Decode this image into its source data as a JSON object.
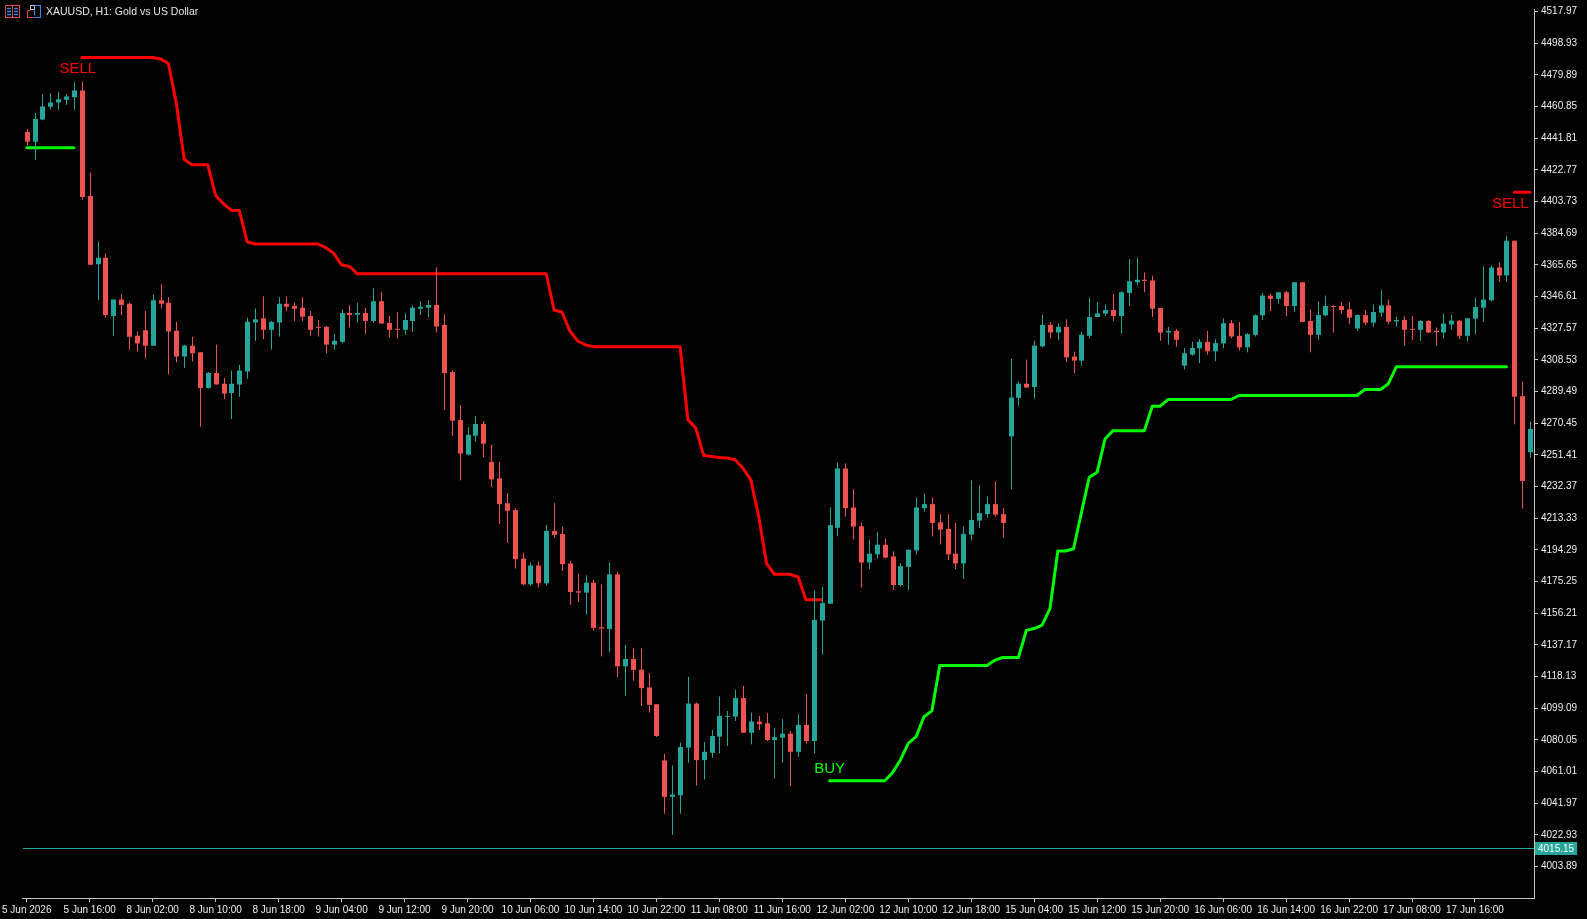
{
  "chart_data": {
    "type": "candlestick",
    "title": "XAUUSD, H1: Gold vs US Dollar",
    "categories": [
      "5 Jun 2026",
      null,
      null,
      null,
      null,
      null,
      null,
      null,
      "5 Jun 16:00",
      null,
      null,
      null,
      null,
      null,
      null,
      null,
      "8 Jun 02:00",
      null,
      null,
      null,
      null,
      null,
      null,
      null,
      "8 Jun 10:00",
      null,
      null,
      null,
      null,
      null,
      null,
      null,
      "8 Jun 18:00",
      null,
      null,
      null,
      null,
      null,
      null,
      null,
      "9 Jun 04:00",
      null,
      null,
      null,
      null,
      null,
      null,
      null,
      "9 Jun 12:00",
      null,
      null,
      null,
      null,
      null,
      null,
      null,
      "9 Jun 20:00",
      null,
      null,
      null,
      null,
      null,
      null,
      null,
      "10 Jun 06:00",
      null,
      null,
      null,
      null,
      null,
      null,
      null,
      "10 Jun 14:00",
      null,
      null,
      null,
      null,
      null,
      null,
      null,
      "10 Jun 22:00",
      null,
      null,
      null,
      null,
      null,
      null,
      null,
      "11 Jun 08:00",
      null,
      null,
      null,
      null,
      null,
      null,
      null,
      "11 Jun 16:00",
      null,
      null,
      null,
      null,
      null,
      null,
      null,
      "12 Jun 02:00",
      null,
      null,
      null,
      null,
      null,
      null,
      null,
      "12 Jun 10:00",
      null,
      null,
      null,
      null,
      null,
      null,
      null,
      "12 Jun 18:00",
      null,
      null,
      null,
      null,
      null,
      null,
      null,
      "15 Jun 04:00",
      null,
      null,
      null,
      null,
      null,
      null,
      null,
      "15 Jun 12:00",
      null,
      null,
      null,
      null,
      null,
      null,
      null,
      "15 Jun 20:00",
      null,
      null,
      null,
      null,
      null,
      null,
      null,
      "16 Jun 06:00",
      null,
      null,
      null,
      null,
      null,
      null,
      null,
      "16 Jun 14:00",
      null,
      null,
      null,
      null,
      null,
      null,
      null,
      "16 Jun 22:00",
      null,
      null,
      null,
      null,
      null,
      null,
      null,
      "17 Jun 08:00",
      null,
      null,
      null,
      null,
      null,
      null,
      null,
      "17 Jun 16:00",
      null,
      null,
      null,
      null,
      null,
      null,
      null
    ],
    "ohlc": [
      [
        4445.6,
        4447.5,
        4437.5,
        4439.7
      ],
      [
        4439.7,
        4457.0,
        4428.6,
        4453.4
      ],
      [
        4453.0,
        4468.3,
        4452.6,
        4460.9
      ],
      [
        4460.7,
        4468.9,
        4459.0,
        4463.3
      ],
      [
        4463.3,
        4469.5,
        4459.0,
        4465.3
      ],
      [
        4464.9,
        4468.3,
        4461.9,
        4466.9
      ],
      [
        4466.5,
        4475.4,
        4459.0,
        4470.5
      ],
      [
        4470.5,
        4475.8,
        4404.8,
        4406.4
      ],
      [
        4407.0,
        4421.2,
        4365.7,
        4365.7
      ],
      [
        4366.1,
        4379.6,
        4344.4,
        4370.0
      ],
      [
        4370.0,
        4372.6,
        4333.9,
        4335.5
      ],
      [
        4334.9,
        4344.8,
        4323.0,
        4344.8
      ],
      [
        4344.8,
        4348.0,
        4335.5,
        4341.5
      ],
      [
        4342.3,
        4342.9,
        4314.7,
        4322.4
      ],
      [
        4323.0,
        4325.6,
        4313.5,
        4318.4
      ],
      [
        4326.4,
        4337.9,
        4309.5,
        4317.1
      ],
      [
        4317.1,
        4347.8,
        4317.1,
        4344.4
      ],
      [
        4344.4,
        4354.0,
        4339.5,
        4342.3
      ],
      [
        4342.9,
        4346.2,
        4299.8,
        4325.6
      ],
      [
        4326.0,
        4331.4,
        4307.1,
        4310.5
      ],
      [
        4310.5,
        4317.7,
        4303.6,
        4317.1
      ],
      [
        4317.1,
        4322.4,
        4307.5,
        4312.5
      ],
      [
        4313.1,
        4313.1,
        4268.4,
        4291.7
      ],
      [
        4291.7,
        4301.2,
        4291.3,
        4300.6
      ],
      [
        4300.6,
        4317.7,
        4293.8,
        4293.8
      ],
      [
        4294.2,
        4297.6,
        4284.9,
        4288.3
      ],
      [
        4288.7,
        4302.2,
        4273.0,
        4294.2
      ],
      [
        4293.8,
        4305.6,
        4286.3,
        4302.2
      ],
      [
        4301.6,
        4333.9,
        4297.2,
        4331.4
      ],
      [
        4331.0,
        4339.5,
        4320.0,
        4332.9
      ],
      [
        4333.5,
        4346.8,
        4321.0,
        4326.6
      ],
      [
        4326.6,
        4331.9,
        4314.7,
        4331.4
      ],
      [
        4331.0,
        4346.2,
        4322.6,
        4342.3
      ],
      [
        4342.3,
        4346.8,
        4337.9,
        4340.5
      ],
      [
        4340.9,
        4342.9,
        4331.9,
        4339.3
      ],
      [
        4339.9,
        4346.2,
        4331.9,
        4334.5
      ],
      [
        4334.9,
        4337.9,
        4323.0,
        4326.6
      ],
      [
        4328.4,
        4332.5,
        4322.6,
        4328.0
      ],
      [
        4328.4,
        4329.0,
        4312.5,
        4317.7
      ],
      [
        4317.7,
        4324.2,
        4314.7,
        4320.0
      ],
      [
        4319.4,
        4338.9,
        4318.4,
        4336.7
      ],
      [
        4336.7,
        4341.5,
        4328.0,
        4335.5
      ],
      [
        4335.7,
        4342.7,
        4330.9,
        4336.7
      ],
      [
        4336.7,
        4339.7,
        4324.2,
        4331.9
      ],
      [
        4331.9,
        4351.8,
        4330.9,
        4343.8
      ],
      [
        4343.8,
        4349.2,
        4330.4,
        4330.4
      ],
      [
        4330.8,
        4334.9,
        4322.0,
        4326.6
      ],
      [
        4327.2,
        4337.3,
        4321.4,
        4326.8
      ],
      [
        4326.6,
        4336.5,
        4323.6,
        4332.5
      ],
      [
        4331.9,
        4341.3,
        4325.4,
        4339.9
      ],
      [
        4339.3,
        4343.8,
        4335.5,
        4340.5
      ],
      [
        4339.9,
        4344.4,
        4334.3,
        4341.5
      ],
      [
        4341.5,
        4364.1,
        4325.0,
        4328.6
      ],
      [
        4329.6,
        4335.9,
        4278.4,
        4300.6
      ],
      [
        4301.2,
        4302.2,
        4262.9,
        4272.0
      ],
      [
        4272.4,
        4281.3,
        4236.1,
        4252.2
      ],
      [
        4251.6,
        4268.0,
        4251.0,
        4263.5
      ],
      [
        4262.9,
        4274.8,
        4259.5,
        4270.0
      ],
      [
        4270.0,
        4271.8,
        4250.0,
        4258.1
      ],
      [
        4247.2,
        4257.5,
        4232.1,
        4236.7
      ],
      [
        4237.3,
        4247.2,
        4209.9,
        4221.8
      ],
      [
        4222.4,
        4228.4,
        4198.6,
        4217.8
      ],
      [
        4218.2,
        4219.4,
        4183.1,
        4188.7
      ],
      [
        4189.1,
        4192.6,
        4173.0,
        4173.6
      ],
      [
        4173.6,
        4186.7,
        4172.6,
        4184.9
      ],
      [
        4184.9,
        4187.3,
        4171.8,
        4174.2
      ],
      [
        4174.2,
        4209.3,
        4173.0,
        4205.7
      ],
      [
        4205.7,
        4222.4,
        4201.6,
        4203.3
      ],
      [
        4203.8,
        4208.2,
        4181.6,
        4185.7
      ],
      [
        4186.1,
        4187.7,
        4161.3,
        4169.0
      ],
      [
        4169.4,
        4180.0,
        4162.9,
        4168.6
      ],
      [
        4168.6,
        4179.0,
        4155.5,
        4174.6
      ],
      [
        4174.6,
        4176.4,
        4145.8,
        4147.4
      ],
      [
        4147.8,
        4173.6,
        4130.3,
        4147.0
      ],
      [
        4146.8,
        4186.7,
        4132.7,
        4179.6
      ],
      [
        4179.6,
        4181.0,
        4117.6,
        4124.3
      ],
      [
        4124.3,
        4137.2,
        4106.6,
        4128.7
      ],
      [
        4128.7,
        4135.1,
        4115.6,
        4122.1
      ],
      [
        4122.3,
        4135.1,
        4100.5,
        4111.2
      ],
      [
        4111.6,
        4120.2,
        4096.5,
        4101.1
      ],
      [
        4101.5,
        4101.5,
        4081.8,
        4082.4
      ],
      [
        4067.7,
        4071.7,
        4035.7,
        4045.8
      ],
      [
        4045.8,
        4064.7,
        4023.0,
        4047.2
      ],
      [
        4046.8,
        4078.4,
        4035.7,
        4075.8
      ],
      [
        4075.4,
        4118.0,
        4066.3,
        4101.9
      ],
      [
        4101.9,
        4102.5,
        4052.6,
        4067.9
      ],
      [
        4067.9,
        4078.8,
        4056.2,
        4072.9
      ],
      [
        4072.3,
        4086.0,
        4069.3,
        4082.4
      ],
      [
        4082.0,
        4106.2,
        4071.9,
        4094.5
      ],
      [
        4093.9,
        4097.5,
        4076.4,
        4094.5
      ],
      [
        4094.1,
        4110.2,
        4091.5,
        4105.2
      ],
      [
        4105.2,
        4112.6,
        4084.4,
        4084.4
      ],
      [
        4084.4,
        4096.5,
        4077.4,
        4091.1
      ],
      [
        4091.1,
        4094.5,
        4086.0,
        4089.5
      ],
      [
        4090.1,
        4096.1,
        4079.4,
        4080.0
      ],
      [
        4080.0,
        4087.4,
        4056.8,
        4081.8
      ],
      [
        4081.4,
        4092.5,
        4066.3,
        4083.8
      ],
      [
        4083.8,
        4085.4,
        4052.2,
        4072.9
      ],
      [
        4072.9,
        4095.5,
        4069.9,
        4089.1
      ],
      [
        4089.1,
        4107.6,
        4077.8,
        4079.4
      ],
      [
        4079.4,
        4170.0,
        4071.9,
        4152.2
      ],
      [
        4151.8,
        4172.0,
        4131.3,
        4162.3
      ],
      [
        4161.9,
        4219.9,
        4161.9,
        4209.2
      ],
      [
        4207.6,
        4246.8,
        4202.5,
        4243.3
      ],
      [
        4243.2,
        4246.2,
        4214.3,
        4219.4
      ],
      [
        4219.8,
        4230.7,
        4200.6,
        4208.3
      ],
      [
        4208.5,
        4210.9,
        4171.6,
        4186.7
      ],
      [
        4186.7,
        4200.4,
        4182.7,
        4192.0
      ],
      [
        4191.6,
        4204.9,
        4189.1,
        4197.4
      ],
      [
        4197.4,
        4201.0,
        4189.1,
        4189.7
      ],
      [
        4190.4,
        4193.4,
        4170.2,
        4173.2
      ],
      [
        4173.2,
        4186.1,
        4172.2,
        4184.5
      ],
      [
        4184.1,
        4194.4,
        4170.2,
        4194.4
      ],
      [
        4194.0,
        4225.8,
        4191.6,
        4219.8
      ],
      [
        4219.4,
        4228.2,
        4217.2,
        4221.8
      ],
      [
        4221.8,
        4225.8,
        4202.4,
        4210.5
      ],
      [
        4210.9,
        4215.8,
        4197.6,
        4206.5
      ],
      [
        4206.9,
        4215.8,
        4188.1,
        4191.6
      ],
      [
        4192.0,
        4210.5,
        4182.7,
        4186.1
      ],
      [
        4186.1,
        4208.5,
        4176.7,
        4203.9
      ],
      [
        4203.5,
        4236.1,
        4200.0,
        4212.3
      ],
      [
        4211.9,
        4233.1,
        4207.5,
        4216.4
      ],
      [
        4215.8,
        4226.4,
        4213.5,
        4221.8
      ],
      [
        4221.8,
        4235.5,
        4214.3,
        4215.5
      ],
      [
        4215.8,
        4219.4,
        4201.6,
        4210.5
      ],
      [
        4262.5,
        4309.1,
        4230.7,
        4285.9
      ],
      [
        4285.7,
        4295.6,
        4280.9,
        4294.2
      ],
      [
        4294.2,
        4308.7,
        4291.7,
        4291.9
      ],
      [
        4292.2,
        4320.0,
        4285.3,
        4317.1
      ],
      [
        4316.7,
        4335.5,
        4316.1,
        4329.6
      ],
      [
        4329.6,
        4331.3,
        4321.4,
        4325.0
      ],
      [
        4325.0,
        4330.6,
        4320.6,
        4328.4
      ],
      [
        4328.4,
        4332.9,
        4307.1,
        4310.1
      ],
      [
        4310.5,
        4313.5,
        4300.6,
        4308.1
      ],
      [
        4308.1,
        4325.4,
        4305.1,
        4323.6
      ],
      [
        4323.0,
        4345.8,
        4321.4,
        4334.3
      ],
      [
        4334.3,
        4343.3,
        4334.3,
        4336.5
      ],
      [
        4336.3,
        4341.9,
        4334.9,
        4338.5
      ],
      [
        4338.5,
        4348.2,
        4331.9,
        4334.9
      ],
      [
        4334.9,
        4349.8,
        4324.4,
        4349.2
      ],
      [
        4348.8,
        4369.1,
        4340.9,
        4355.8
      ],
      [
        4355.2,
        4370.0,
        4353.4,
        4356.7
      ],
      [
        4356.7,
        4361.1,
        4349.2,
        4356.0
      ],
      [
        4356.3,
        4359.1,
        4334.3,
        4339.3
      ],
      [
        4339.7,
        4339.7,
        4320.0,
        4325.0
      ],
      [
        4325.0,
        4328.4,
        4317.7,
        4326.0
      ],
      [
        4326.0,
        4327.0,
        4316.5,
        4320.6
      ],
      [
        4305.1,
        4315.7,
        4302.8,
        4312.5
      ],
      [
        4311.7,
        4319.4,
        4311.1,
        4315.7
      ],
      [
        4315.5,
        4321.0,
        4306.5,
        4319.4
      ],
      [
        4319.4,
        4326.0,
        4311.7,
        4313.7
      ],
      [
        4313.7,
        4321.0,
        4307.7,
        4318.6
      ],
      [
        4318.4,
        4333.5,
        4315.5,
        4330.6
      ],
      [
        4330.6,
        4332.5,
        4321.4,
        4322.6
      ],
      [
        4323.0,
        4331.3,
        4314.1,
        4316.1
      ],
      [
        4316.1,
        4324.6,
        4313.1,
        4324.0
      ],
      [
        4323.6,
        4335.9,
        4322.6,
        4335.3
      ],
      [
        4335.3,
        4348.8,
        4332.5,
        4347.2
      ],
      [
        4347.2,
        4348.4,
        4337.9,
        4345.2
      ],
      [
        4345.2,
        4349.2,
        4342.3,
        4349.2
      ],
      [
        4349.2,
        4349.8,
        4334.9,
        4340.9
      ],
      [
        4340.9,
        4355.2,
        4337.3,
        4355.2
      ],
      [
        4355.2,
        4355.2,
        4331.3,
        4331.3
      ],
      [
        4331.9,
        4338.9,
        4313.1,
        4323.6
      ],
      [
        4323.6,
        4343.8,
        4320.6,
        4335.5
      ],
      [
        4335.3,
        4347.2,
        4334.9,
        4340.9
      ],
      [
        4340.9,
        4341.5,
        4325.0,
        4340.3
      ],
      [
        4340.9,
        4343.3,
        4336.3,
        4338.5
      ],
      [
        4338.9,
        4343.3,
        4330.0,
        4333.9
      ],
      [
        4327.4,
        4335.9,
        4326.0,
        4335.5
      ],
      [
        4335.5,
        4338.5,
        4329.4,
        4330.9
      ],
      [
        4330.9,
        4341.9,
        4328.4,
        4337.3
      ],
      [
        4336.9,
        4350.4,
        4334.3,
        4341.3
      ],
      [
        4341.3,
        4344.8,
        4330.0,
        4331.5
      ],
      [
        4331.7,
        4334.5,
        4328.6,
        4332.5
      ],
      [
        4332.5,
        4334.5,
        4317.1,
        4326.6
      ],
      [
        4327.2,
        4334.9,
        4320.6,
        4326.8
      ],
      [
        4326.6,
        4332.5,
        4320.0,
        4331.9
      ],
      [
        4331.9,
        4332.5,
        4324.6,
        4325.0
      ],
      [
        4326.0,
        4328.0,
        4317.1,
        4325.2
      ],
      [
        4325.0,
        4336.3,
        4321.4,
        4330.4
      ],
      [
        4329.8,
        4335.5,
        4326.6,
        4332.1
      ],
      [
        4332.1,
        4332.5,
        4321.0,
        4323.0
      ],
      [
        4323.0,
        4333.5,
        4319.6,
        4333.5
      ],
      [
        4333.3,
        4345.8,
        4324.0,
        4340.3
      ],
      [
        4339.9,
        4364.7,
        4331.3,
        4344.8
      ],
      [
        4344.4,
        4365.3,
        4343.8,
        4364.1
      ],
      [
        4364.1,
        4367.1,
        4355.4,
        4359.3
      ],
      [
        4359.3,
        4383.1,
        4355.4,
        4380.2
      ],
      [
        4380.2,
        4380.2,
        4269.8,
        4286.3
      ],
      [
        4286.7,
        4295.6,
        4219.2,
        4235.7
      ],
      [
        4253.0,
        4271.4,
        4249.6,
        4267.0
      ]
    ],
    "colors": [
      "#ef5350",
      "#26a69a",
      "#26a69a",
      "#26a69a",
      "#26a69a",
      "#26a69a",
      "#26a69a",
      "#ef5350",
      "#ef5350",
      "#26a69a",
      "#ef5350",
      "#26a69a",
      "#ef5350",
      "#ef5350",
      "#ef5350",
      "#ef5350",
      "#26a69a",
      "#ef5350",
      "#ef5350",
      "#ef5350",
      "#26a69a",
      "#ef5350",
      "#ef5350",
      "#26a69a",
      "#ef5350",
      "#ef5350",
      "#26a69a",
      "#26a69a",
      "#26a69a",
      "#26a69a",
      "#ef5350",
      "#26a69a",
      "#26a69a",
      "#ef5350",
      "#ef5350",
      "#ef5350",
      "#ef5350",
      "#ef5350",
      "#ef5350",
      "#26a69a",
      "#26a69a",
      "#ef5350",
      "#26a69a",
      "#ef5350",
      "#26a69a",
      "#ef5350",
      "#ef5350",
      "#ef5350",
      "#26a69a",
      "#26a69a",
      "#26a69a",
      "#26a69a",
      "#ef5350",
      "#ef5350",
      "#ef5350",
      "#ef5350",
      "#26a69a",
      "#26a69a",
      "#ef5350",
      "#ef5350",
      "#ef5350",
      "#ef5350",
      "#ef5350",
      "#ef5350",
      "#26a69a",
      "#ef5350",
      "#26a69a",
      "#ef5350",
      "#ef5350",
      "#ef5350",
      "#ef5350",
      "#26a69a",
      "#ef5350",
      "#ef5350",
      "#26a69a",
      "#ef5350",
      "#26a69a",
      "#ef5350",
      "#ef5350",
      "#ef5350",
      "#ef5350",
      "#ef5350",
      "#26a69a",
      "#26a69a",
      "#26a69a",
      "#ef5350",
      "#26a69a",
      "#26a69a",
      "#26a69a",
      "#26a69a",
      "#26a69a",
      "#ef5350",
      "#26a69a",
      "#ef5350",
      "#ef5350",
      "#26a69a",
      "#26a69a",
      "#ef5350",
      "#26a69a",
      "#ef5350",
      "#26a69a",
      "#26a69a",
      "#26a69a",
      "#26a69a",
      "#ef5350",
      "#ef5350",
      "#ef5350",
      "#26a69a",
      "#26a69a",
      "#ef5350",
      "#ef5350",
      "#26a69a",
      "#26a69a",
      "#26a69a",
      "#26a69a",
      "#ef5350",
      "#ef5350",
      "#ef5350",
      "#ef5350",
      "#26a69a",
      "#26a69a",
      "#26a69a",
      "#26a69a",
      "#ef5350",
      "#ef5350",
      "#26a69a",
      "#26a69a",
      "#ef5350",
      "#26a69a",
      "#26a69a",
      "#ef5350",
      "#26a69a",
      "#ef5350",
      "#ef5350",
      "#26a69a",
      "#26a69a",
      "#26a69a",
      "#26a69a",
      "#ef5350",
      "#26a69a",
      "#26a69a",
      "#26a69a",
      "#ef5350",
      "#ef5350",
      "#ef5350",
      "#26a69a",
      "#ef5350",
      "#26a69a",
      "#26a69a",
      "#26a69a",
      "#ef5350",
      "#26a69a",
      "#26a69a",
      "#ef5350",
      "#ef5350",
      "#26a69a",
      "#26a69a",
      "#26a69a",
      "#ef5350",
      "#26a69a",
      "#ef5350",
      "#26a69a",
      "#ef5350",
      "#ef5350",
      "#26a69a",
      "#26a69a",
      "#ef5350",
      "#ef5350",
      "#ef5350",
      "#26a69a",
      "#ef5350",
      "#26a69a",
      "#26a69a",
      "#ef5350",
      "#26a69a",
      "#ef5350",
      "#ef5350",
      "#26a69a",
      "#ef5350",
      "#ef5350",
      "#26a69a",
      "#26a69a",
      "#ef5350",
      "#26a69a",
      "#26a69a",
      "#26a69a",
      "#26a69a",
      "#ef5350",
      "#26a69a",
      "#ef5350",
      "#ef5350",
      "#26a69a"
    ],
    "series": [
      {
        "type": "line",
        "color": "#00ff00",
        "values": [
          4436.1,
          4436.1,
          4436.1,
          4436.1,
          4436.1,
          4436.1,
          4436.1,
          null,
          null,
          null,
          null,
          null,
          null,
          null,
          null,
          null,
          null,
          null,
          null,
          null,
          null,
          null,
          null,
          null,
          null,
          null,
          null,
          null,
          null,
          null,
          null,
          null,
          null,
          null,
          null,
          null,
          null,
          null,
          null,
          null,
          null,
          null,
          null,
          null,
          null,
          null,
          null,
          null,
          null,
          null,
          null,
          null,
          null,
          null,
          null,
          null,
          null,
          null,
          null,
          null,
          null,
          null,
          null,
          null,
          null,
          null,
          null,
          null,
          null,
          null,
          null,
          null,
          null,
          null,
          null,
          null,
          null,
          null,
          null,
          null,
          null,
          null,
          null,
          null,
          null,
          null,
          null,
          null,
          null,
          null,
          null,
          null,
          null,
          null,
          null,
          null,
          null,
          null,
          null,
          null,
          null,
          null,
          4055.5,
          4055.5,
          4055.5,
          4055.5,
          4055.5,
          4055.5,
          4055.5,
          4055.5,
          4060.3,
          4068.0,
          4078.0,
          4082.0,
          4094.0,
          4097.5,
          4124.8,
          4124.8,
          4124.8,
          4124.8,
          4124.8,
          4124.8,
          4124.8,
          4128.0,
          4129.6,
          4129.6,
          4129.6,
          4145.9,
          4147.0,
          4149.0,
          4159.0,
          4193.6,
          4193.6,
          4195.0,
          4216.8,
          4238.0,
          4241.0,
          4261.0,
          4266.0,
          4266.0,
          4266.0,
          4266.0,
          4266.0,
          4280.7,
          4280.7,
          4284.7,
          4284.7,
          4284.7,
          4284.7,
          4284.7,
          4284.7,
          4284.7,
          4284.7,
          4284.7,
          4287.1,
          4287.1,
          4287.1,
          4287.1,
          4287.1,
          4287.1,
          4287.1,
          4287.1,
          4287.1,
          4287.1,
          4287.1,
          4287.1,
          4287.1,
          4287.1,
          4287.1,
          4287.1,
          4290.7,
          4290.7,
          4290.7,
          4294.2,
          4304.4,
          4304.4,
          4304.4,
          4304.4,
          4304.4,
          4304.4,
          4304.4,
          4304.4,
          4304.4,
          4304.4,
          4304.4,
          4304.4,
          4304.4,
          4304.4,
          4304.4,
          null,
          null,
          null
        ]
      },
      {
        "type": "line",
        "color": "#ff0000",
        "values": [
          null,
          null,
          null,
          null,
          null,
          null,
          null,
          4490.3,
          4490.3,
          4490.3,
          4490.3,
          4490.3,
          4490.3,
          4490.3,
          4490.3,
          4490.3,
          4490.3,
          4489.5,
          4486.7,
          4462.9,
          4429.2,
          4425.8,
          4425.8,
          4425.8,
          4407.4,
          4402.4,
          4398.4,
          4398.4,
          4379.6,
          4378.2,
          4378.2,
          4378.2,
          4378.2,
          4378.2,
          4378.2,
          4378.2,
          4378.2,
          4378.2,
          4376.0,
          4372.6,
          4365.7,
          4364.7,
          4360.3,
          4360.3,
          4360.3,
          4360.3,
          4360.3,
          4360.3,
          4360.3,
          4360.3,
          4360.3,
          4360.3,
          4360.3,
          4360.3,
          4360.3,
          4360.3,
          4360.3,
          4360.3,
          4360.3,
          4360.3,
          4360.3,
          4360.3,
          4360.3,
          4360.3,
          4360.3,
          4360.3,
          4360.3,
          4338.5,
          4337.3,
          4326.0,
          4319.9,
          4317.5,
          4316.5,
          4316.5,
          4316.5,
          4316.5,
          4316.5,
          4316.5,
          4316.5,
          4316.5,
          4316.5,
          4316.5,
          4316.5,
          4316.5,
          4272.6,
          4267.6,
          4251.1,
          4250.5,
          4249.9,
          4249.5,
          4248.5,
          4243.4,
          4236.4,
          4214.2,
          4186.1,
          4179.6,
          4179.6,
          4179.6,
          4178.0,
          4164.3,
          4164.3,
          4164.3,
          null,
          null,
          null,
          null,
          null,
          null,
          null,
          null,
          null,
          null,
          null,
          null,
          null,
          null,
          null,
          null,
          null,
          null,
          null,
          null,
          null,
          null,
          null,
          null,
          null,
          null,
          null,
          null,
          null,
          null,
          null,
          null,
          null,
          null,
          null,
          null,
          null,
          null,
          null,
          null,
          null,
          null,
          null,
          null,
          null,
          null,
          null,
          null,
          null,
          null,
          null,
          null,
          null,
          null,
          null,
          null,
          null,
          null,
          null,
          null,
          null,
          null,
          null,
          null,
          null,
          null,
          null,
          null,
          null,
          null,
          null,
          null,
          null,
          null,
          null,
          null,
          null,
          null,
          null,
          null,
          null,
          null,
          null,
          null,
          null,
          null,
          null,
          null,
          null,
          null
        ]
      },
      {
        "type": "line",
        "color": "#ff0000",
        "values": [
          null,
          null,
          null,
          null,
          null,
          null,
          null,
          null,
          null,
          null,
          null,
          null,
          null,
          null,
          null,
          null,
          null,
          null,
          null,
          null,
          null,
          null,
          null,
          null,
          null,
          null,
          null,
          null,
          null,
          null,
          null,
          null,
          null,
          null,
          null,
          null,
          null,
          null,
          null,
          null,
          null,
          null,
          null,
          null,
          null,
          null,
          null,
          null,
          null,
          null,
          null,
          null,
          null,
          null,
          null,
          null,
          null,
          null,
          null,
          null,
          null,
          null,
          null,
          null,
          null,
          null,
          null,
          null,
          null,
          null,
          null,
          null,
          null,
          null,
          null,
          null,
          null,
          null,
          null,
          null,
          null,
          null,
          null,
          null,
          null,
          null,
          null,
          null,
          null,
          null,
          null,
          null,
          null,
          null,
          null,
          null,
          null,
          null,
          null,
          null,
          null,
          null,
          null,
          null,
          null,
          null,
          null,
          null,
          null,
          null,
          null,
          null,
          null,
          null,
          null,
          null,
          null,
          null,
          null,
          null,
          null,
          null,
          null,
          null,
          null,
          null,
          null,
          null,
          null,
          null,
          null,
          null,
          null,
          null,
          null,
          null,
          null,
          null,
          null,
          null,
          null,
          null,
          null,
          null,
          null,
          null,
          null,
          null,
          null,
          null,
          null,
          null,
          null,
          null,
          null,
          null,
          null,
          null,
          null,
          null,
          null,
          null,
          null,
          null,
          null,
          null,
          null,
          null,
          null,
          null,
          null,
          null,
          null,
          null,
          null,
          null,
          null,
          null,
          null,
          null,
          null,
          null,
          null,
          null,
          null,
          null,
          null,
          null,
          null,
          4409.3,
          4409.3,
          4409.3
        ]
      }
    ],
    "ylim": [
      3985.0,
      4519.5
    ],
    "yticks": [
      4003.89,
      4022.93,
      4041.97,
      4061.01,
      4080.05,
      4099.09,
      4118.13,
      4137.17,
      4156.21,
      4175.25,
      4194.29,
      4213.33,
      4232.37,
      4251.41,
      4270.45,
      4289.49,
      4308.53,
      4327.57,
      4346.61,
      4365.65,
      4384.69,
      4403.73,
      4422.77,
      4441.81,
      4460.85,
      4479.89,
      4498.93,
      4517.97
    ],
    "ref_lines": [
      {
        "axis": "y",
        "value": 4015.15,
        "label": "4015.15",
        "color": "#26a69a"
      }
    ],
    "annotations": [
      "SELL",
      "BUY",
      "SELL"
    ],
    "grid": false,
    "legend": false,
    "marker": "none"
  }
}
